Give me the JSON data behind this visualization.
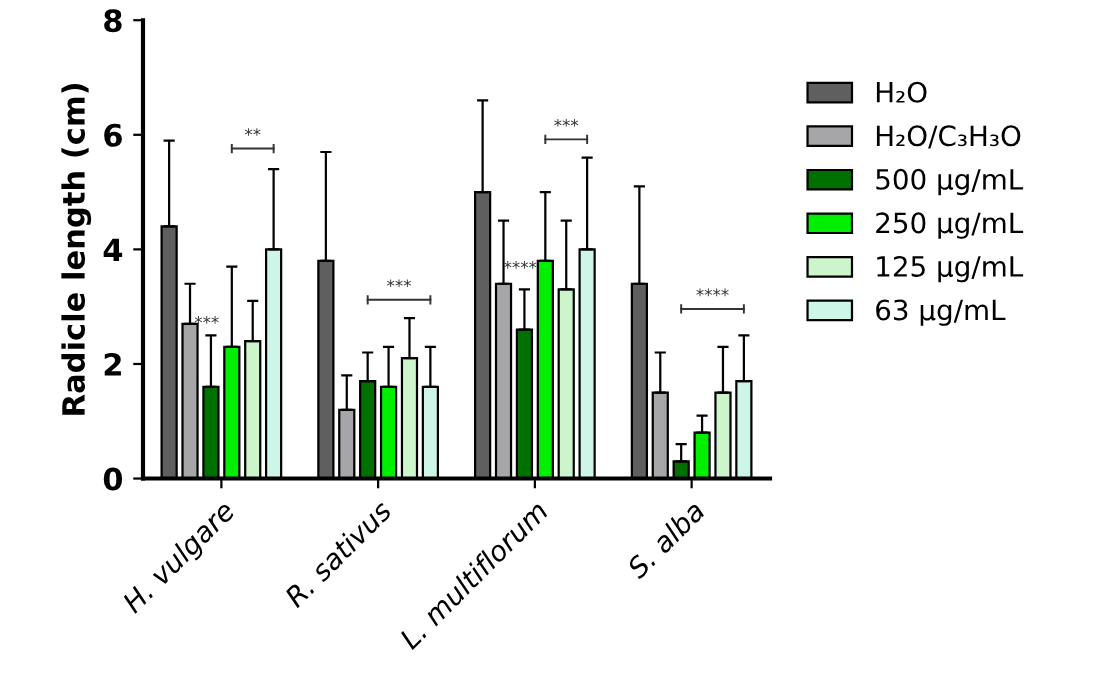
{
  "chart_data": {
    "type": "bar",
    "ylabel": "Radicle length (cm)",
    "categories": [
      "H. vulgare",
      "R. sativus",
      "L. multiflorum",
      "S. alba"
    ],
    "series": [
      {
        "name": "H₂O",
        "color": "#5f5f5f",
        "values": [
          4.4,
          3.8,
          5.0,
          3.4
        ],
        "errors": [
          [
            4.4,
            5.9
          ],
          [
            3.8,
            5.7
          ],
          [
            5.0,
            6.6
          ],
          [
            3.4,
            5.1
          ]
        ]
      },
      {
        "name": "H₂O/C₃H₃O",
        "color": "#a6a6a8",
        "values": [
          2.7,
          1.2,
          3.4,
          1.5
        ],
        "errors": [
          [
            2.7,
            3.4
          ],
          [
            1.2,
            1.8
          ],
          [
            3.4,
            4.5
          ],
          [
            1.5,
            2.2
          ]
        ]
      },
      {
        "name": "500 μg/mL",
        "color": "#007000",
        "values": [
          1.6,
          1.7,
          2.6,
          0.3
        ],
        "errors": [
          [
            1.6,
            2.5
          ],
          [
            1.7,
            2.2
          ],
          [
            2.6,
            3.3
          ],
          [
            0.3,
            0.6
          ]
        ]
      },
      {
        "name": "250 μg/mL",
        "color": "#00ee00",
        "values": [
          2.3,
          1.6,
          3.8,
          0.8
        ],
        "errors": [
          [
            2.3,
            3.7
          ],
          [
            1.6,
            2.3
          ],
          [
            3.8,
            5.0
          ],
          [
            0.8,
            1.1
          ]
        ]
      },
      {
        "name": "125 μg/mL",
        "color": "#ccf5cc",
        "values": [
          2.4,
          2.1,
          3.3,
          1.5
        ],
        "errors": [
          [
            2.4,
            3.1
          ],
          [
            2.1,
            2.8
          ],
          [
            3.3,
            4.5
          ],
          [
            1.5,
            2.3
          ]
        ]
      },
      {
        "name": "63 μg/mL",
        "color": "#cdf5e8",
        "values": [
          4.0,
          1.6,
          4.0,
          1.7
        ],
        "errors": [
          [
            4.0,
            5.4
          ],
          [
            1.6,
            2.3
          ],
          [
            4.0,
            5.6
          ],
          [
            1.7,
            2.5
          ]
        ]
      }
    ],
    "ylim": [
      0,
      8
    ],
    "yticks": [
      0,
      2,
      4,
      6,
      8
    ],
    "grid": false,
    "legend": "right",
    "annotations": [
      "***",
      "**",
      "***",
      "****",
      "***",
      "****"
    ]
  }
}
